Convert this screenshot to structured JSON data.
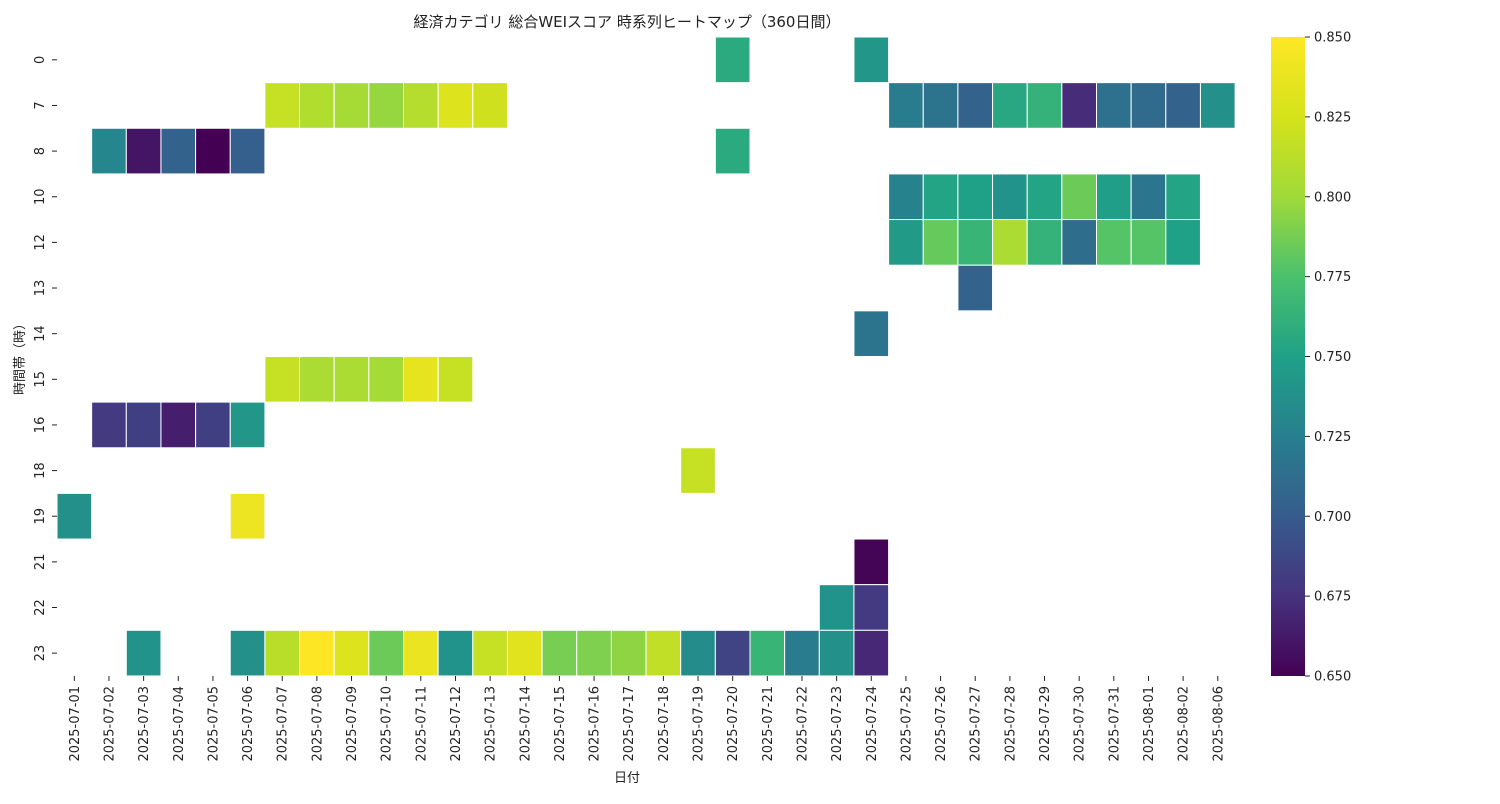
{
  "chart_data": {
    "type": "heatmap",
    "title": "経済カテゴリ 総合WEIスコア 時系列ヒートマップ（360日間）",
    "xlabel": "日付",
    "ylabel": "時間帯（時）",
    "x": [
      "2025-07-01",
      "2025-07-02",
      "2025-07-03",
      "2025-07-04",
      "2025-07-05",
      "2025-07-06",
      "2025-07-07",
      "2025-07-08",
      "2025-07-09",
      "2025-07-10",
      "2025-07-11",
      "2025-07-12",
      "2025-07-13",
      "2025-07-14",
      "2025-07-15",
      "2025-07-16",
      "2025-07-17",
      "2025-07-18",
      "2025-07-19",
      "2025-07-20",
      "2025-07-21",
      "2025-07-22",
      "2025-07-23",
      "2025-07-24",
      "2025-07-25",
      "2025-07-26",
      "2025-07-27",
      "2025-07-28",
      "2025-07-29",
      "2025-07-30",
      "2025-07-31",
      "2025-08-01",
      "2025-08-02",
      "2025-08-06"
    ],
    "y": [
      "0",
      "7",
      "8",
      "10",
      "12",
      "13",
      "14",
      "15",
      "16",
      "18",
      "19",
      "21",
      "22",
      "23"
    ],
    "values": [
      [
        null,
        null,
        null,
        null,
        null,
        null,
        null,
        null,
        null,
        null,
        null,
        null,
        null,
        null,
        null,
        null,
        null,
        null,
        null,
        0.757,
        null,
        null,
        null,
        0.742,
        null,
        null,
        null,
        null,
        null,
        null,
        null,
        null,
        null,
        null
      ],
      [
        null,
        null,
        null,
        null,
        null,
        null,
        0.818,
        0.808,
        0.803,
        0.797,
        0.81,
        0.83,
        0.822,
        null,
        null,
        null,
        null,
        null,
        null,
        null,
        null,
        null,
        null,
        null,
        0.722,
        0.717,
        0.705,
        0.755,
        0.763,
        0.672,
        0.715,
        0.71,
        0.705,
        0.738
      ],
      [
        null,
        0.73,
        0.66,
        0.705,
        0.65,
        0.702,
        null,
        null,
        null,
        null,
        null,
        null,
        null,
        null,
        null,
        null,
        null,
        null,
        null,
        0.757,
        null,
        null,
        null,
        null,
        null,
        null,
        null,
        null,
        null,
        null,
        null,
        null,
        null,
        null
      ],
      [
        null,
        null,
        null,
        null,
        null,
        null,
        null,
        null,
        null,
        null,
        null,
        null,
        null,
        null,
        null,
        null,
        null,
        null,
        null,
        null,
        null,
        null,
        null,
        null,
        0.728,
        0.752,
        0.75,
        0.74,
        0.752,
        0.785,
        0.748,
        0.718,
        0.752,
        null
      ],
      [
        null,
        null,
        null,
        null,
        null,
        null,
        null,
        null,
        null,
        null,
        null,
        null,
        null,
        null,
        null,
        null,
        null,
        null,
        null,
        null,
        null,
        null,
        null,
        null,
        0.745,
        0.783,
        0.765,
        0.805,
        0.763,
        0.712,
        0.778,
        0.778,
        0.75,
        null
      ],
      [
        null,
        null,
        null,
        null,
        null,
        null,
        null,
        null,
        null,
        null,
        null,
        null,
        null,
        null,
        null,
        null,
        null,
        null,
        null,
        null,
        null,
        null,
        null,
        null,
        null,
        null,
        0.705,
        null,
        null,
        null,
        null,
        null,
        null,
        null
      ],
      [
        null,
        null,
        null,
        null,
        null,
        null,
        null,
        null,
        null,
        null,
        null,
        null,
        null,
        null,
        null,
        null,
        null,
        null,
        null,
        null,
        null,
        null,
        null,
        0.717,
        null,
        null,
        null,
        null,
        null,
        null,
        null,
        null,
        null,
        null
      ],
      [
        null,
        null,
        null,
        null,
        null,
        null,
        0.818,
        0.805,
        0.805,
        0.802,
        0.835,
        0.818,
        null,
        null,
        null,
        null,
        null,
        null,
        null,
        null,
        null,
        null,
        null,
        null,
        null,
        null,
        null,
        null,
        null,
        null,
        null,
        null,
        null,
        null
      ],
      [
        null,
        0.68,
        0.683,
        0.665,
        0.683,
        0.742,
        null,
        null,
        null,
        null,
        null,
        null,
        null,
        null,
        null,
        null,
        null,
        null,
        null,
        null,
        null,
        null,
        null,
        null,
        null,
        null,
        null,
        null,
        null,
        null,
        null,
        null,
        null,
        null
      ],
      [
        null,
        null,
        null,
        null,
        null,
        null,
        null,
        null,
        null,
        null,
        null,
        null,
        null,
        null,
        null,
        null,
        null,
        null,
        0.818,
        null,
        null,
        null,
        null,
        null,
        null,
        null,
        null,
        null,
        null,
        null,
        null,
        null,
        null,
        null
      ],
      [
        0.738,
        null,
        null,
        null,
        null,
        0.84,
        null,
        null,
        null,
        null,
        null,
        null,
        null,
        null,
        null,
        null,
        null,
        null,
        null,
        null,
        null,
        null,
        null,
        null,
        null,
        null,
        null,
        null,
        null,
        null,
        null,
        null,
        null,
        null
      ],
      [
        null,
        null,
        null,
        null,
        null,
        null,
        null,
        null,
        null,
        null,
        null,
        null,
        null,
        null,
        null,
        null,
        null,
        null,
        null,
        null,
        null,
        null,
        null,
        0.652,
        null,
        null,
        null,
        null,
        null,
        null,
        null,
        null,
        null,
        null
      ],
      [
        null,
        null,
        null,
        null,
        null,
        null,
        null,
        null,
        null,
        null,
        null,
        null,
        null,
        null,
        null,
        null,
        null,
        null,
        null,
        null,
        null,
        null,
        0.74,
        0.68,
        null,
        null,
        null,
        null,
        null,
        null,
        null,
        null,
        null,
        null
      ],
      [
        null,
        null,
        0.74,
        null,
        null,
        0.738,
        0.812,
        0.85,
        0.83,
        0.785,
        0.838,
        0.74,
        0.818,
        0.832,
        0.788,
        0.79,
        0.795,
        0.815,
        0.735,
        0.685,
        0.765,
        0.722,
        0.738,
        0.67,
        null,
        null,
        null,
        null,
        null,
        null,
        null,
        null,
        null,
        null
      ]
    ],
    "colormap": "viridis",
    "vmin": 0.65,
    "vmax": 0.85,
    "colorbar_ticks": [
      "0.650",
      "0.675",
      "0.700",
      "0.725",
      "0.750",
      "0.775",
      "0.800",
      "0.825",
      "0.850"
    ],
    "grid": false,
    "colorbar_position": "right"
  }
}
